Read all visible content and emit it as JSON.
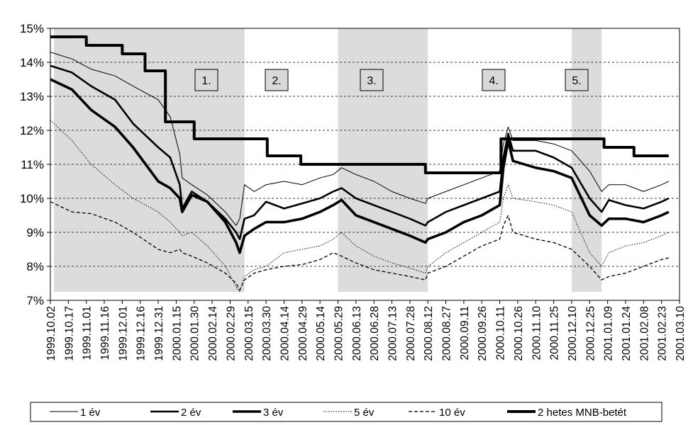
{
  "chart_data": {
    "type": "line",
    "title": "",
    "xlabel": "",
    "ylabel": "",
    "ylim": [
      7,
      15
    ],
    "yticks": [
      "7%",
      "8%",
      "9%",
      "10%",
      "11%",
      "12%",
      "13%",
      "14%",
      "15%"
    ],
    "xlim": [
      "1999.10.02",
      "2001.03.10"
    ],
    "xticks": [
      "1999.10.02",
      "1999.10.17",
      "1999.11.01",
      "1999.11.16",
      "1999.12.01",
      "1999.12.16",
      "1999.12.31",
      "2000.01.15",
      "2000.01.30",
      "2000.02.14",
      "2000.02.29",
      "2000.03.15",
      "2000.03.30",
      "2000.04.14",
      "2000.04.29",
      "2000.05.14",
      "2000.05.29",
      "2000.06.13",
      "2000.06.28",
      "2000.07.13",
      "2000.07.28",
      "2000.08.12",
      "2000.08.27",
      "2000.09.11",
      "2000.09.26",
      "2000.10.11",
      "2000.10.26",
      "2000.11.10",
      "2000.11.25",
      "2000.12.10",
      "2000.12.25",
      "2001.01.09",
      "2001.01.24",
      "2001.02.08",
      "2001.02.23",
      "2001.03.10"
    ],
    "grid": "horizontal dashed",
    "legend_position": "bottom",
    "periods": [
      {
        "label": "1.",
        "start": "1999.10.05",
        "end": "2000.03.12"
      },
      {
        "label": "2.",
        "start": "2000.03.12",
        "end": "2000.05.29"
      },
      {
        "label": "3.",
        "start": "2000.05.29",
        "end": "2000.08.12"
      },
      {
        "label": "4.",
        "start": "2000.08.12",
        "end": "2000.12.10"
      },
      {
        "label": "5.",
        "start": "2000.12.10",
        "end": "2001.01.04"
      }
    ],
    "series": [
      {
        "name": "1 év",
        "style": "thin",
        "points": [
          [
            "1999.10.02",
            14.3
          ],
          [
            "1999.10.20",
            14.1
          ],
          [
            "1999.11.05",
            13.8
          ],
          [
            "1999.11.25",
            13.6
          ],
          [
            "1999.12.10",
            13.3
          ],
          [
            "1999.12.31",
            12.9
          ],
          [
            "2000.01.10",
            12.4
          ],
          [
            "2000.01.18",
            11.3
          ],
          [
            "2000.01.20",
            10.6
          ],
          [
            "2000.01.28",
            10.4
          ],
          [
            "2000.02.10",
            10.1
          ],
          [
            "2000.02.25",
            9.6
          ],
          [
            "2000.03.05",
            9.2
          ],
          [
            "2000.03.08",
            9.4
          ],
          [
            "2000.03.12",
            10.4
          ],
          [
            "2000.03.20",
            10.2
          ],
          [
            "2000.03.30",
            10.4
          ],
          [
            "2000.04.14",
            10.5
          ],
          [
            "2000.04.29",
            10.4
          ],
          [
            "2000.05.14",
            10.6
          ],
          [
            "2000.05.25",
            10.7
          ],
          [
            "2000.06.01",
            10.9
          ],
          [
            "2000.06.13",
            10.7
          ],
          [
            "2000.06.28",
            10.5
          ],
          [
            "2000.07.13",
            10.2
          ],
          [
            "2000.07.28",
            10.0
          ],
          [
            "2000.08.10",
            9.85
          ],
          [
            "2000.08.12",
            10.0
          ],
          [
            "2000.08.27",
            10.2
          ],
          [
            "2000.09.11",
            10.4
          ],
          [
            "2000.09.26",
            10.6
          ],
          [
            "2000.10.11",
            10.8
          ],
          [
            "2000.10.14",
            11.6
          ],
          [
            "2000.10.18",
            12.1
          ],
          [
            "2000.10.22",
            11.7
          ],
          [
            "2000.11.10",
            11.7
          ],
          [
            "2000.11.25",
            11.6
          ],
          [
            "2000.12.10",
            11.4
          ],
          [
            "2000.12.25",
            10.8
          ],
          [
            "2001.01.04",
            10.2
          ],
          [
            "2001.01.10",
            10.4
          ],
          [
            "2001.01.24",
            10.4
          ],
          [
            "2001.02.08",
            10.2
          ],
          [
            "2001.02.23",
            10.4
          ],
          [
            "2001.03.01",
            10.5
          ]
        ]
      },
      {
        "name": "2 év",
        "style": "medium",
        "points": [
          [
            "1999.10.02",
            13.9
          ],
          [
            "1999.10.20",
            13.7
          ],
          [
            "1999.11.05",
            13.3
          ],
          [
            "1999.11.25",
            12.9
          ],
          [
            "1999.12.10",
            12.2
          ],
          [
            "1999.12.31",
            11.5
          ],
          [
            "2000.01.10",
            11.2
          ],
          [
            "2000.01.18",
            10.4
          ],
          [
            "2000.01.20",
            9.7
          ],
          [
            "2000.01.28",
            10.2
          ],
          [
            "2000.02.10",
            9.9
          ],
          [
            "2000.02.25",
            9.4
          ],
          [
            "2000.03.05",
            9.0
          ],
          [
            "2000.03.08",
            8.8
          ],
          [
            "2000.03.12",
            9.4
          ],
          [
            "2000.03.20",
            9.5
          ],
          [
            "2000.03.30",
            9.9
          ],
          [
            "2000.04.14",
            9.7
          ],
          [
            "2000.04.29",
            9.85
          ],
          [
            "2000.05.14",
            10.0
          ],
          [
            "2000.05.25",
            10.2
          ],
          [
            "2000.06.01",
            10.3
          ],
          [
            "2000.06.13",
            10.0
          ],
          [
            "2000.06.28",
            9.8
          ],
          [
            "2000.07.13",
            9.6
          ],
          [
            "2000.07.28",
            9.4
          ],
          [
            "2000.08.10",
            9.2
          ],
          [
            "2000.08.12",
            9.3
          ],
          [
            "2000.08.27",
            9.6
          ],
          [
            "2000.09.11",
            9.8
          ],
          [
            "2000.09.26",
            10.0
          ],
          [
            "2000.10.11",
            10.2
          ],
          [
            "2000.10.14",
            11.2
          ],
          [
            "2000.10.18",
            11.9
          ],
          [
            "2000.10.22",
            11.4
          ],
          [
            "2000.11.10",
            11.4
          ],
          [
            "2000.11.25",
            11.2
          ],
          [
            "2000.12.10",
            10.9
          ],
          [
            "2000.12.25",
            10.0
          ],
          [
            "2001.01.04",
            9.6
          ],
          [
            "2001.01.10",
            9.95
          ],
          [
            "2001.01.24",
            9.8
          ],
          [
            "2001.02.08",
            9.7
          ],
          [
            "2001.02.23",
            9.9
          ],
          [
            "2001.03.01",
            10.0
          ]
        ]
      },
      {
        "name": "3 év",
        "style": "thick",
        "points": [
          [
            "1999.10.02",
            13.5
          ],
          [
            "1999.10.20",
            13.2
          ],
          [
            "1999.11.05",
            12.6
          ],
          [
            "1999.11.25",
            12.1
          ],
          [
            "1999.12.10",
            11.5
          ],
          [
            "1999.12.31",
            10.5
          ],
          [
            "2000.01.10",
            10.3
          ],
          [
            "2000.01.18",
            10.0
          ],
          [
            "2000.01.20",
            9.6
          ],
          [
            "2000.01.28",
            10.1
          ],
          [
            "2000.02.10",
            9.9
          ],
          [
            "2000.02.25",
            9.3
          ],
          [
            "2000.03.05",
            8.7
          ],
          [
            "2000.03.08",
            8.4
          ],
          [
            "2000.03.12",
            8.9
          ],
          [
            "2000.03.20",
            9.1
          ],
          [
            "2000.03.30",
            9.3
          ],
          [
            "2000.04.14",
            9.3
          ],
          [
            "2000.04.29",
            9.4
          ],
          [
            "2000.05.14",
            9.6
          ],
          [
            "2000.05.25",
            9.8
          ],
          [
            "2000.06.01",
            9.95
          ],
          [
            "2000.06.13",
            9.5
          ],
          [
            "2000.06.28",
            9.3
          ],
          [
            "2000.07.13",
            9.1
          ],
          [
            "2000.07.28",
            8.9
          ],
          [
            "2000.08.10",
            8.7
          ],
          [
            "2000.08.12",
            8.8
          ],
          [
            "2000.08.27",
            9.0
          ],
          [
            "2000.09.11",
            9.3
          ],
          [
            "2000.09.26",
            9.5
          ],
          [
            "2000.10.11",
            9.8
          ],
          [
            "2000.10.14",
            10.9
          ],
          [
            "2000.10.18",
            11.7
          ],
          [
            "2000.10.22",
            11.1
          ],
          [
            "2000.11.10",
            10.9
          ],
          [
            "2000.11.25",
            10.8
          ],
          [
            "2000.12.10",
            10.6
          ],
          [
            "2000.12.25",
            9.5
          ],
          [
            "2001.01.04",
            9.2
          ],
          [
            "2001.01.10",
            9.4
          ],
          [
            "2001.01.24",
            9.4
          ],
          [
            "2001.02.08",
            9.3
          ],
          [
            "2001.02.23",
            9.5
          ],
          [
            "2001.03.01",
            9.6
          ]
        ]
      },
      {
        "name": "5 év",
        "style": "dotted",
        "points": [
          [
            "1999.10.02",
            12.3
          ],
          [
            "1999.10.20",
            11.7
          ],
          [
            "1999.11.05",
            11.0
          ],
          [
            "1999.11.25",
            10.4
          ],
          [
            "1999.12.10",
            10.0
          ],
          [
            "1999.12.31",
            9.6
          ],
          [
            "2000.01.10",
            9.3
          ],
          [
            "2000.01.18",
            9.0
          ],
          [
            "2000.01.20",
            8.9
          ],
          [
            "2000.01.28",
            9.0
          ],
          [
            "2000.02.10",
            8.6
          ],
          [
            "2000.02.25",
            8.0
          ],
          [
            "2000.03.05",
            7.4
          ],
          [
            "2000.03.08",
            7.25
          ],
          [
            "2000.03.12",
            7.7
          ],
          [
            "2000.03.20",
            7.9
          ],
          [
            "2000.03.30",
            8.0
          ],
          [
            "2000.04.14",
            8.4
          ],
          [
            "2000.04.29",
            8.5
          ],
          [
            "2000.05.14",
            8.6
          ],
          [
            "2000.05.25",
            8.8
          ],
          [
            "2000.06.01",
            9.0
          ],
          [
            "2000.06.13",
            8.6
          ],
          [
            "2000.06.28",
            8.3
          ],
          [
            "2000.07.13",
            8.1
          ],
          [
            "2000.07.28",
            7.95
          ],
          [
            "2000.08.10",
            7.8
          ],
          [
            "2000.08.12",
            8.0
          ],
          [
            "2000.08.27",
            8.4
          ],
          [
            "2000.09.11",
            8.7
          ],
          [
            "2000.09.26",
            9.0
          ],
          [
            "2000.10.11",
            9.3
          ],
          [
            "2000.10.14",
            10.0
          ],
          [
            "2000.10.18",
            10.4
          ],
          [
            "2000.10.22",
            10.0
          ],
          [
            "2000.11.10",
            9.9
          ],
          [
            "2000.11.25",
            9.8
          ],
          [
            "2000.12.10",
            9.6
          ],
          [
            "2000.12.25",
            8.4
          ],
          [
            "2001.01.04",
            8.0
          ],
          [
            "2001.01.10",
            8.4
          ],
          [
            "2001.01.24",
            8.6
          ],
          [
            "2001.02.08",
            8.7
          ],
          [
            "2001.02.23",
            8.9
          ],
          [
            "2001.03.01",
            9.0
          ]
        ]
      },
      {
        "name": "10 év",
        "style": "dashed",
        "points": [
          [
            "1999.10.02",
            9.9
          ],
          [
            "1999.10.20",
            9.6
          ],
          [
            "1999.11.05",
            9.55
          ],
          [
            "1999.11.25",
            9.3
          ],
          [
            "1999.12.10",
            9.0
          ],
          [
            "1999.12.31",
            8.5
          ],
          [
            "2000.01.10",
            8.4
          ],
          [
            "2000.01.18",
            8.5
          ],
          [
            "2000.01.20",
            8.4
          ],
          [
            "2000.01.28",
            8.3
          ],
          [
            "2000.02.10",
            8.1
          ],
          [
            "2000.02.25",
            7.8
          ],
          [
            "2000.03.05",
            7.5
          ],
          [
            "2000.03.08",
            7.3
          ],
          [
            "2000.03.12",
            7.6
          ],
          [
            "2000.03.20",
            7.8
          ],
          [
            "2000.03.30",
            7.9
          ],
          [
            "2000.04.14",
            8.0
          ],
          [
            "2000.04.29",
            8.05
          ],
          [
            "2000.05.14",
            8.2
          ],
          [
            "2000.05.25",
            8.4
          ],
          [
            "2000.06.01",
            8.3
          ],
          [
            "2000.06.13",
            8.1
          ],
          [
            "2000.06.28",
            7.9
          ],
          [
            "2000.07.13",
            7.8
          ],
          [
            "2000.07.28",
            7.7
          ],
          [
            "2000.08.10",
            7.6
          ],
          [
            "2000.08.12",
            7.8
          ],
          [
            "2000.08.27",
            8.0
          ],
          [
            "2000.09.11",
            8.3
          ],
          [
            "2000.09.26",
            8.6
          ],
          [
            "2000.10.11",
            8.8
          ],
          [
            "2000.10.14",
            9.2
          ],
          [
            "2000.10.18",
            9.5
          ],
          [
            "2000.10.22",
            9.0
          ],
          [
            "2000.11.10",
            8.8
          ],
          [
            "2000.11.25",
            8.7
          ],
          [
            "2000.12.10",
            8.5
          ],
          [
            "2000.12.25",
            8.0
          ],
          [
            "2001.01.04",
            7.6
          ],
          [
            "2001.01.10",
            7.7
          ],
          [
            "2001.01.24",
            7.8
          ],
          [
            "2001.02.08",
            8.0
          ],
          [
            "2001.02.23",
            8.2
          ],
          [
            "2001.03.01",
            8.25
          ]
        ]
      },
      {
        "name": "2 hetes MNB-betét",
        "style": "step-bold",
        "points": [
          [
            "1999.10.02",
            14.75
          ],
          [
            "1999.11.01",
            14.5
          ],
          [
            "1999.12.01",
            14.25
          ],
          [
            "1999.12.20",
            13.75
          ],
          [
            "2000.01.06",
            12.25
          ],
          [
            "2000.01.30",
            11.75
          ],
          [
            "2000.03.31",
            11.25
          ],
          [
            "2000.04.28",
            11.0
          ],
          [
            "2000.08.10",
            10.75
          ],
          [
            "2000.10.12",
            11.75
          ],
          [
            "2000.12.22",
            11.75
          ],
          [
            "2001.01.06",
            11.5
          ],
          [
            "2001.01.31",
            11.25
          ],
          [
            "2001.03.01",
            11.25
          ]
        ]
      }
    ]
  }
}
